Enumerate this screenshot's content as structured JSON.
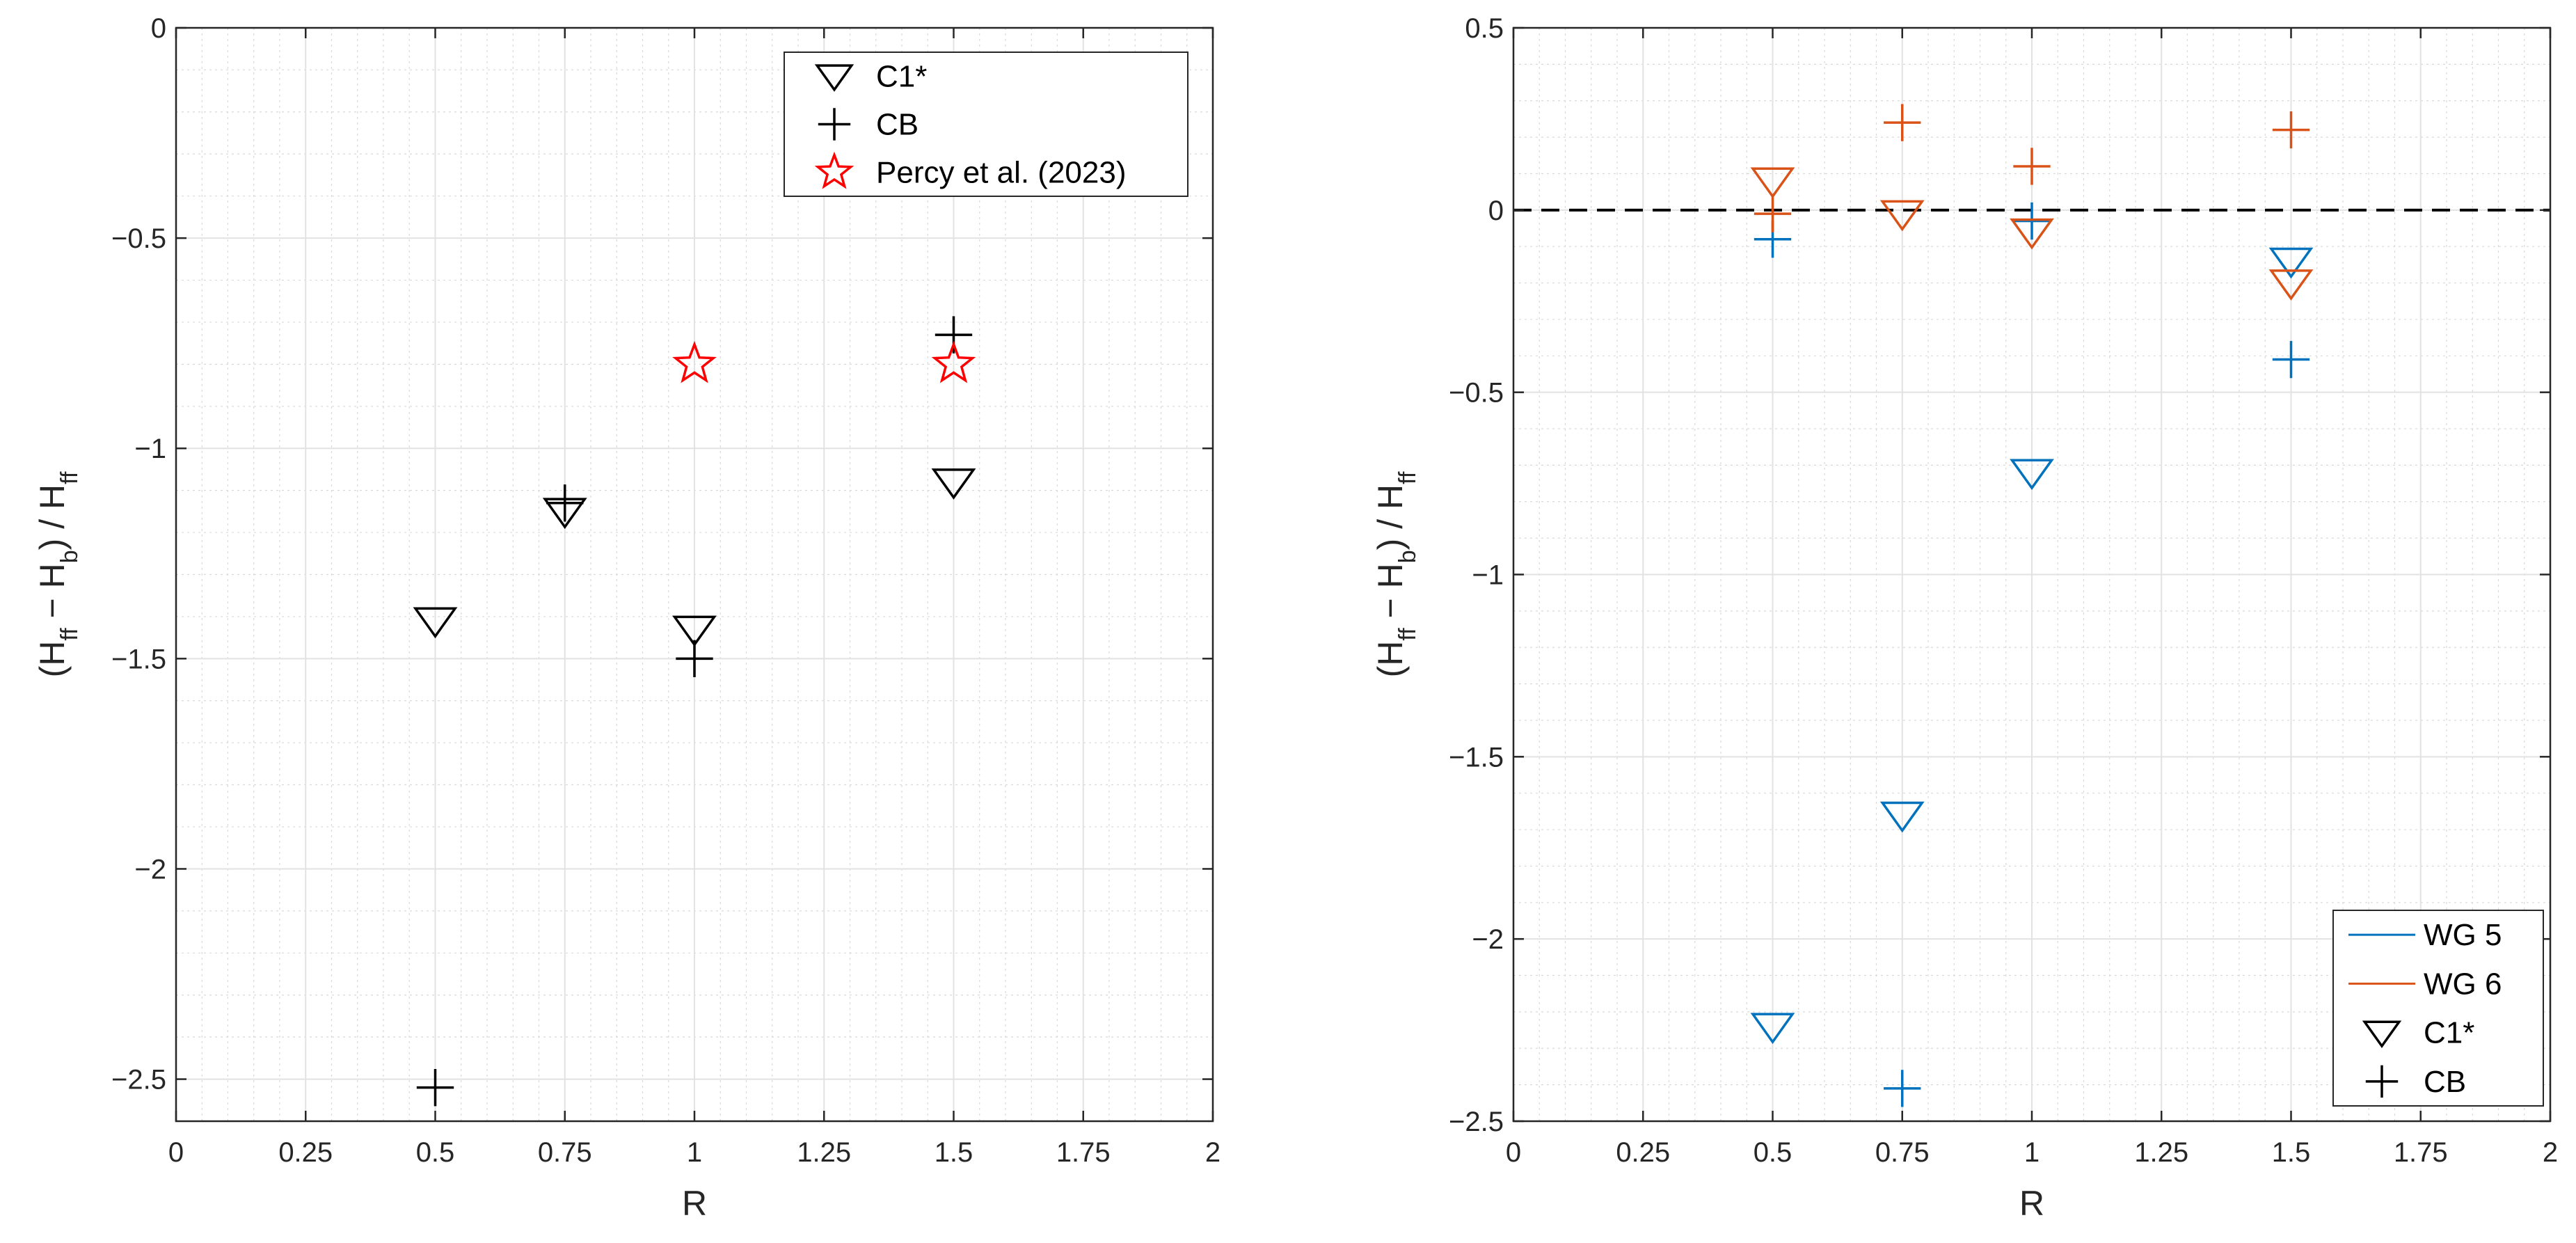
{
  "chart_data": [
    {
      "type": "scatter",
      "xlabel": "R",
      "ylabel": "(H_ff − H_b) / H_ff",
      "xlim": [
        0,
        2
      ],
      "ylim": [
        -2.6,
        0
      ],
      "xticks": [
        0,
        0.25,
        0.5,
        0.75,
        1,
        1.25,
        1.5,
        1.75,
        2
      ],
      "xtick_labels": [
        "0",
        "0.25",
        "0.5",
        "0.75",
        "1",
        "1.25",
        "1.5",
        "1.75",
        "2"
      ],
      "yticks": [
        0,
        -0.5,
        -1,
        -1.5,
        -2,
        -2.5
      ],
      "ytick_labels": [
        "0",
        "−0.5",
        "−1",
        "−1.5",
        "−2",
        "−2.5"
      ],
      "grid": true,
      "minor_grid": true,
      "legend_position": "top-right",
      "series": [
        {
          "name": "C1*",
          "marker": "triangle-down",
          "color": "#000000",
          "x": [
            0.5,
            0.75,
            1,
            1.5
          ],
          "y": [
            -1.41,
            -1.15,
            -1.43,
            -1.08
          ]
        },
        {
          "name": "CB",
          "marker": "plus",
          "color": "#000000",
          "x": [
            0.5,
            0.75,
            1,
            1.5
          ],
          "y": [
            -2.52,
            -1.13,
            -1.5,
            -0.73
          ]
        },
        {
          "name": "Percy et al. (2023)",
          "marker": "star",
          "color": "#ff0000",
          "x": [
            1,
            1.5
          ],
          "y": [
            -0.8,
            -0.8
          ]
        }
      ]
    },
    {
      "type": "scatter",
      "xlabel": "R",
      "ylabel": "(H_ff − H_b) / H_ff",
      "xlim": [
        0,
        2
      ],
      "ylim": [
        -2.5,
        0.5
      ],
      "xticks": [
        0,
        0.25,
        0.5,
        0.75,
        1,
        1.25,
        1.5,
        1.75,
        2
      ],
      "xtick_labels": [
        "0",
        "0.25",
        "0.5",
        "0.75",
        "1",
        "1.25",
        "1.5",
        "1.75",
        "2"
      ],
      "yticks": [
        0.5,
        0,
        -0.5,
        -1,
        -1.5,
        -2,
        -2.5
      ],
      "ytick_labels": [
        "0.5",
        "0",
        "−0.5",
        "−1",
        "−1.5",
        "−2",
        "−2.5"
      ],
      "grid": true,
      "minor_grid": true,
      "reference_line_y": 0,
      "legend_position": "bottom-right",
      "legend_entries": [
        {
          "name": "WG 5",
          "kind": "line",
          "color": "#0072bd"
        },
        {
          "name": "WG 6",
          "kind": "line",
          "color": "#d95319"
        },
        {
          "name": "C1*",
          "kind": "triangle-down",
          "color": "#000000"
        },
        {
          "name": "CB",
          "kind": "plus",
          "color": "#000000"
        }
      ],
      "series": [
        {
          "name": "WG 5 C1*",
          "marker": "triangle-down",
          "color": "#0072bd",
          "x": [
            0.5,
            0.75,
            1,
            1.5
          ],
          "y": [
            -2.24,
            -1.66,
            -0.72,
            -0.14
          ]
        },
        {
          "name": "WG 5 CB",
          "marker": "plus",
          "color": "#0072bd",
          "x": [
            0.5,
            0.75,
            1,
            1.5
          ],
          "y": [
            -0.08,
            -2.41,
            -0.03,
            -0.41
          ]
        },
        {
          "name": "WG 6 C1*",
          "marker": "triangle-down",
          "color": "#d95319",
          "x": [
            0.5,
            0.75,
            1,
            1.5
          ],
          "y": [
            0.08,
            -0.01,
            -0.06,
            -0.2
          ]
        },
        {
          "name": "WG 6 CB",
          "marker": "plus",
          "color": "#d95319",
          "x": [
            0.5,
            0.75,
            1,
            1.5
          ],
          "y": [
            -0.01,
            0.24,
            0.12,
            0.22
          ]
        }
      ]
    }
  ]
}
